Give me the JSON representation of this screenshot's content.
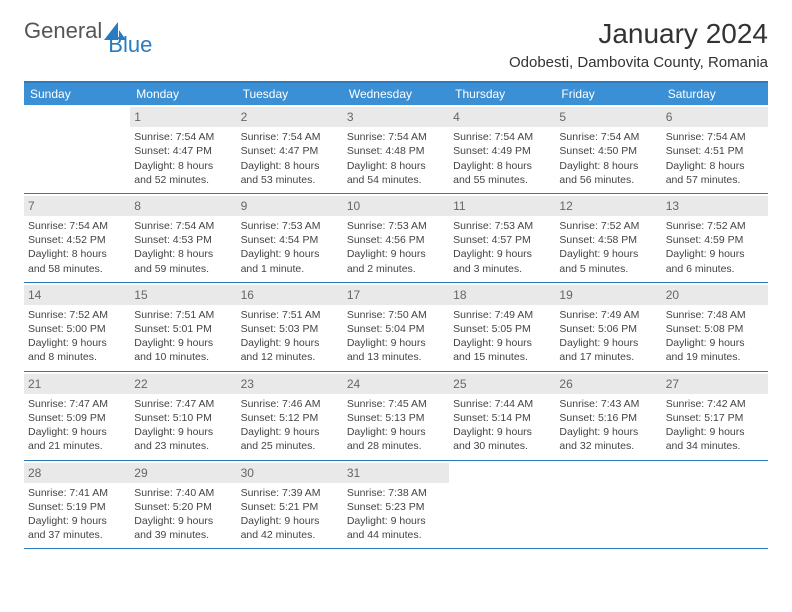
{
  "logo": {
    "text1": "General",
    "text2": "Blue"
  },
  "title": "January 2024",
  "location": "Odobesti, Dambovita County, Romania",
  "colors": {
    "header_bg": "#3b8fd4",
    "border": "#2a7bbf",
    "daynum_bg": "#e9e9e9",
    "text": "#444444"
  },
  "weekdays": [
    "Sunday",
    "Monday",
    "Tuesday",
    "Wednesday",
    "Thursday",
    "Friday",
    "Saturday"
  ],
  "start_offset": 1,
  "days": [
    {
      "n": 1,
      "sunrise": "7:54 AM",
      "sunset": "4:47 PM",
      "dl": "8 hours and 52 minutes."
    },
    {
      "n": 2,
      "sunrise": "7:54 AM",
      "sunset": "4:47 PM",
      "dl": "8 hours and 53 minutes."
    },
    {
      "n": 3,
      "sunrise": "7:54 AM",
      "sunset": "4:48 PM",
      "dl": "8 hours and 54 minutes."
    },
    {
      "n": 4,
      "sunrise": "7:54 AM",
      "sunset": "4:49 PM",
      "dl": "8 hours and 55 minutes."
    },
    {
      "n": 5,
      "sunrise": "7:54 AM",
      "sunset": "4:50 PM",
      "dl": "8 hours and 56 minutes."
    },
    {
      "n": 6,
      "sunrise": "7:54 AM",
      "sunset": "4:51 PM",
      "dl": "8 hours and 57 minutes."
    },
    {
      "n": 7,
      "sunrise": "7:54 AM",
      "sunset": "4:52 PM",
      "dl": "8 hours and 58 minutes."
    },
    {
      "n": 8,
      "sunrise": "7:54 AM",
      "sunset": "4:53 PM",
      "dl": "8 hours and 59 minutes."
    },
    {
      "n": 9,
      "sunrise": "7:53 AM",
      "sunset": "4:54 PM",
      "dl": "9 hours and 1 minute."
    },
    {
      "n": 10,
      "sunrise": "7:53 AM",
      "sunset": "4:56 PM",
      "dl": "9 hours and 2 minutes."
    },
    {
      "n": 11,
      "sunrise": "7:53 AM",
      "sunset": "4:57 PM",
      "dl": "9 hours and 3 minutes."
    },
    {
      "n": 12,
      "sunrise": "7:52 AM",
      "sunset": "4:58 PM",
      "dl": "9 hours and 5 minutes."
    },
    {
      "n": 13,
      "sunrise": "7:52 AM",
      "sunset": "4:59 PM",
      "dl": "9 hours and 6 minutes."
    },
    {
      "n": 14,
      "sunrise": "7:52 AM",
      "sunset": "5:00 PM",
      "dl": "9 hours and 8 minutes."
    },
    {
      "n": 15,
      "sunrise": "7:51 AM",
      "sunset": "5:01 PM",
      "dl": "9 hours and 10 minutes."
    },
    {
      "n": 16,
      "sunrise": "7:51 AM",
      "sunset": "5:03 PM",
      "dl": "9 hours and 12 minutes."
    },
    {
      "n": 17,
      "sunrise": "7:50 AM",
      "sunset": "5:04 PM",
      "dl": "9 hours and 13 minutes."
    },
    {
      "n": 18,
      "sunrise": "7:49 AM",
      "sunset": "5:05 PM",
      "dl": "9 hours and 15 minutes."
    },
    {
      "n": 19,
      "sunrise": "7:49 AM",
      "sunset": "5:06 PM",
      "dl": "9 hours and 17 minutes."
    },
    {
      "n": 20,
      "sunrise": "7:48 AM",
      "sunset": "5:08 PM",
      "dl": "9 hours and 19 minutes."
    },
    {
      "n": 21,
      "sunrise": "7:47 AM",
      "sunset": "5:09 PM",
      "dl": "9 hours and 21 minutes."
    },
    {
      "n": 22,
      "sunrise": "7:47 AM",
      "sunset": "5:10 PM",
      "dl": "9 hours and 23 minutes."
    },
    {
      "n": 23,
      "sunrise": "7:46 AM",
      "sunset": "5:12 PM",
      "dl": "9 hours and 25 minutes."
    },
    {
      "n": 24,
      "sunrise": "7:45 AM",
      "sunset": "5:13 PM",
      "dl": "9 hours and 28 minutes."
    },
    {
      "n": 25,
      "sunrise": "7:44 AM",
      "sunset": "5:14 PM",
      "dl": "9 hours and 30 minutes."
    },
    {
      "n": 26,
      "sunrise": "7:43 AM",
      "sunset": "5:16 PM",
      "dl": "9 hours and 32 minutes."
    },
    {
      "n": 27,
      "sunrise": "7:42 AM",
      "sunset": "5:17 PM",
      "dl": "9 hours and 34 minutes."
    },
    {
      "n": 28,
      "sunrise": "7:41 AM",
      "sunset": "5:19 PM",
      "dl": "9 hours and 37 minutes."
    },
    {
      "n": 29,
      "sunrise": "7:40 AM",
      "sunset": "5:20 PM",
      "dl": "9 hours and 39 minutes."
    },
    {
      "n": 30,
      "sunrise": "7:39 AM",
      "sunset": "5:21 PM",
      "dl": "9 hours and 42 minutes."
    },
    {
      "n": 31,
      "sunrise": "7:38 AM",
      "sunset": "5:23 PM",
      "dl": "9 hours and 44 minutes."
    }
  ],
  "labels": {
    "sunrise": "Sunrise:",
    "sunset": "Sunset:",
    "daylight": "Daylight:"
  }
}
